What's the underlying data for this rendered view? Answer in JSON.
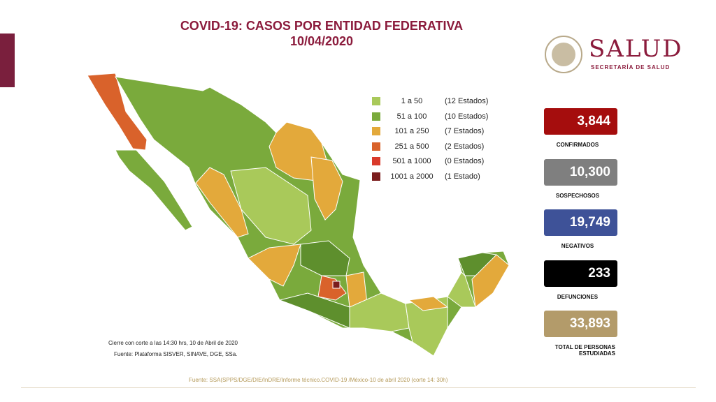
{
  "header": {
    "title": "COVID-19: CASOS POR ENTIDAD FEDERATIVA",
    "date": "10/04/2020"
  },
  "logo": {
    "name": "SALUD",
    "subtitle": "SECRETARÍA DE SALUD"
  },
  "legend": [
    {
      "range": "1 a 50",
      "count": "(12 Estados)",
      "color": "#a9c95a"
    },
    {
      "range": "51 a 100",
      "count": "(10 Estados)",
      "color": "#7aaa3c"
    },
    {
      "range": "101 a 250",
      "count": "(7 Estados)",
      "color": "#e3a93b"
    },
    {
      "range": "251 a 500",
      "count": "(2 Estados)",
      "color": "#d9622b"
    },
    {
      "range": "501 a 1000",
      "count": "(0 Estados)",
      "color": "#d93a2b"
    },
    {
      "range": "1001 a 2000",
      "count": "(1 Estado)",
      "color": "#7b1d1d"
    }
  ],
  "stats": [
    {
      "value": "3,844",
      "label": "CONFIRMADOS",
      "color": "#a50d0d"
    },
    {
      "value": "10,300",
      "label": "SOSPECHOSOS",
      "color": "#7f7f7f"
    },
    {
      "value": "19,749",
      "label": "NEGATIVOS",
      "color": "#3e5298"
    },
    {
      "value": "233",
      "label": "DEFUNCIONES",
      "color": "#000000"
    },
    {
      "value": "33,893",
      "label": "TOTAL DE PERSONAS ESTUDIADAS",
      "color": "#b39b6a"
    }
  ],
  "notes": [
    "Cierre con corte a las 14:30 hrs, 10 de Abril de 2020",
    "Fuente: Plataforma SISVER, SINAVE, DGE, SSa."
  ],
  "footer": "Fuente: SSA(SPPS/DGE/DIE/InDRE/Informe técnico.COVID-19 /México-10 de abril 2020 (corte 14: 30h)"
}
